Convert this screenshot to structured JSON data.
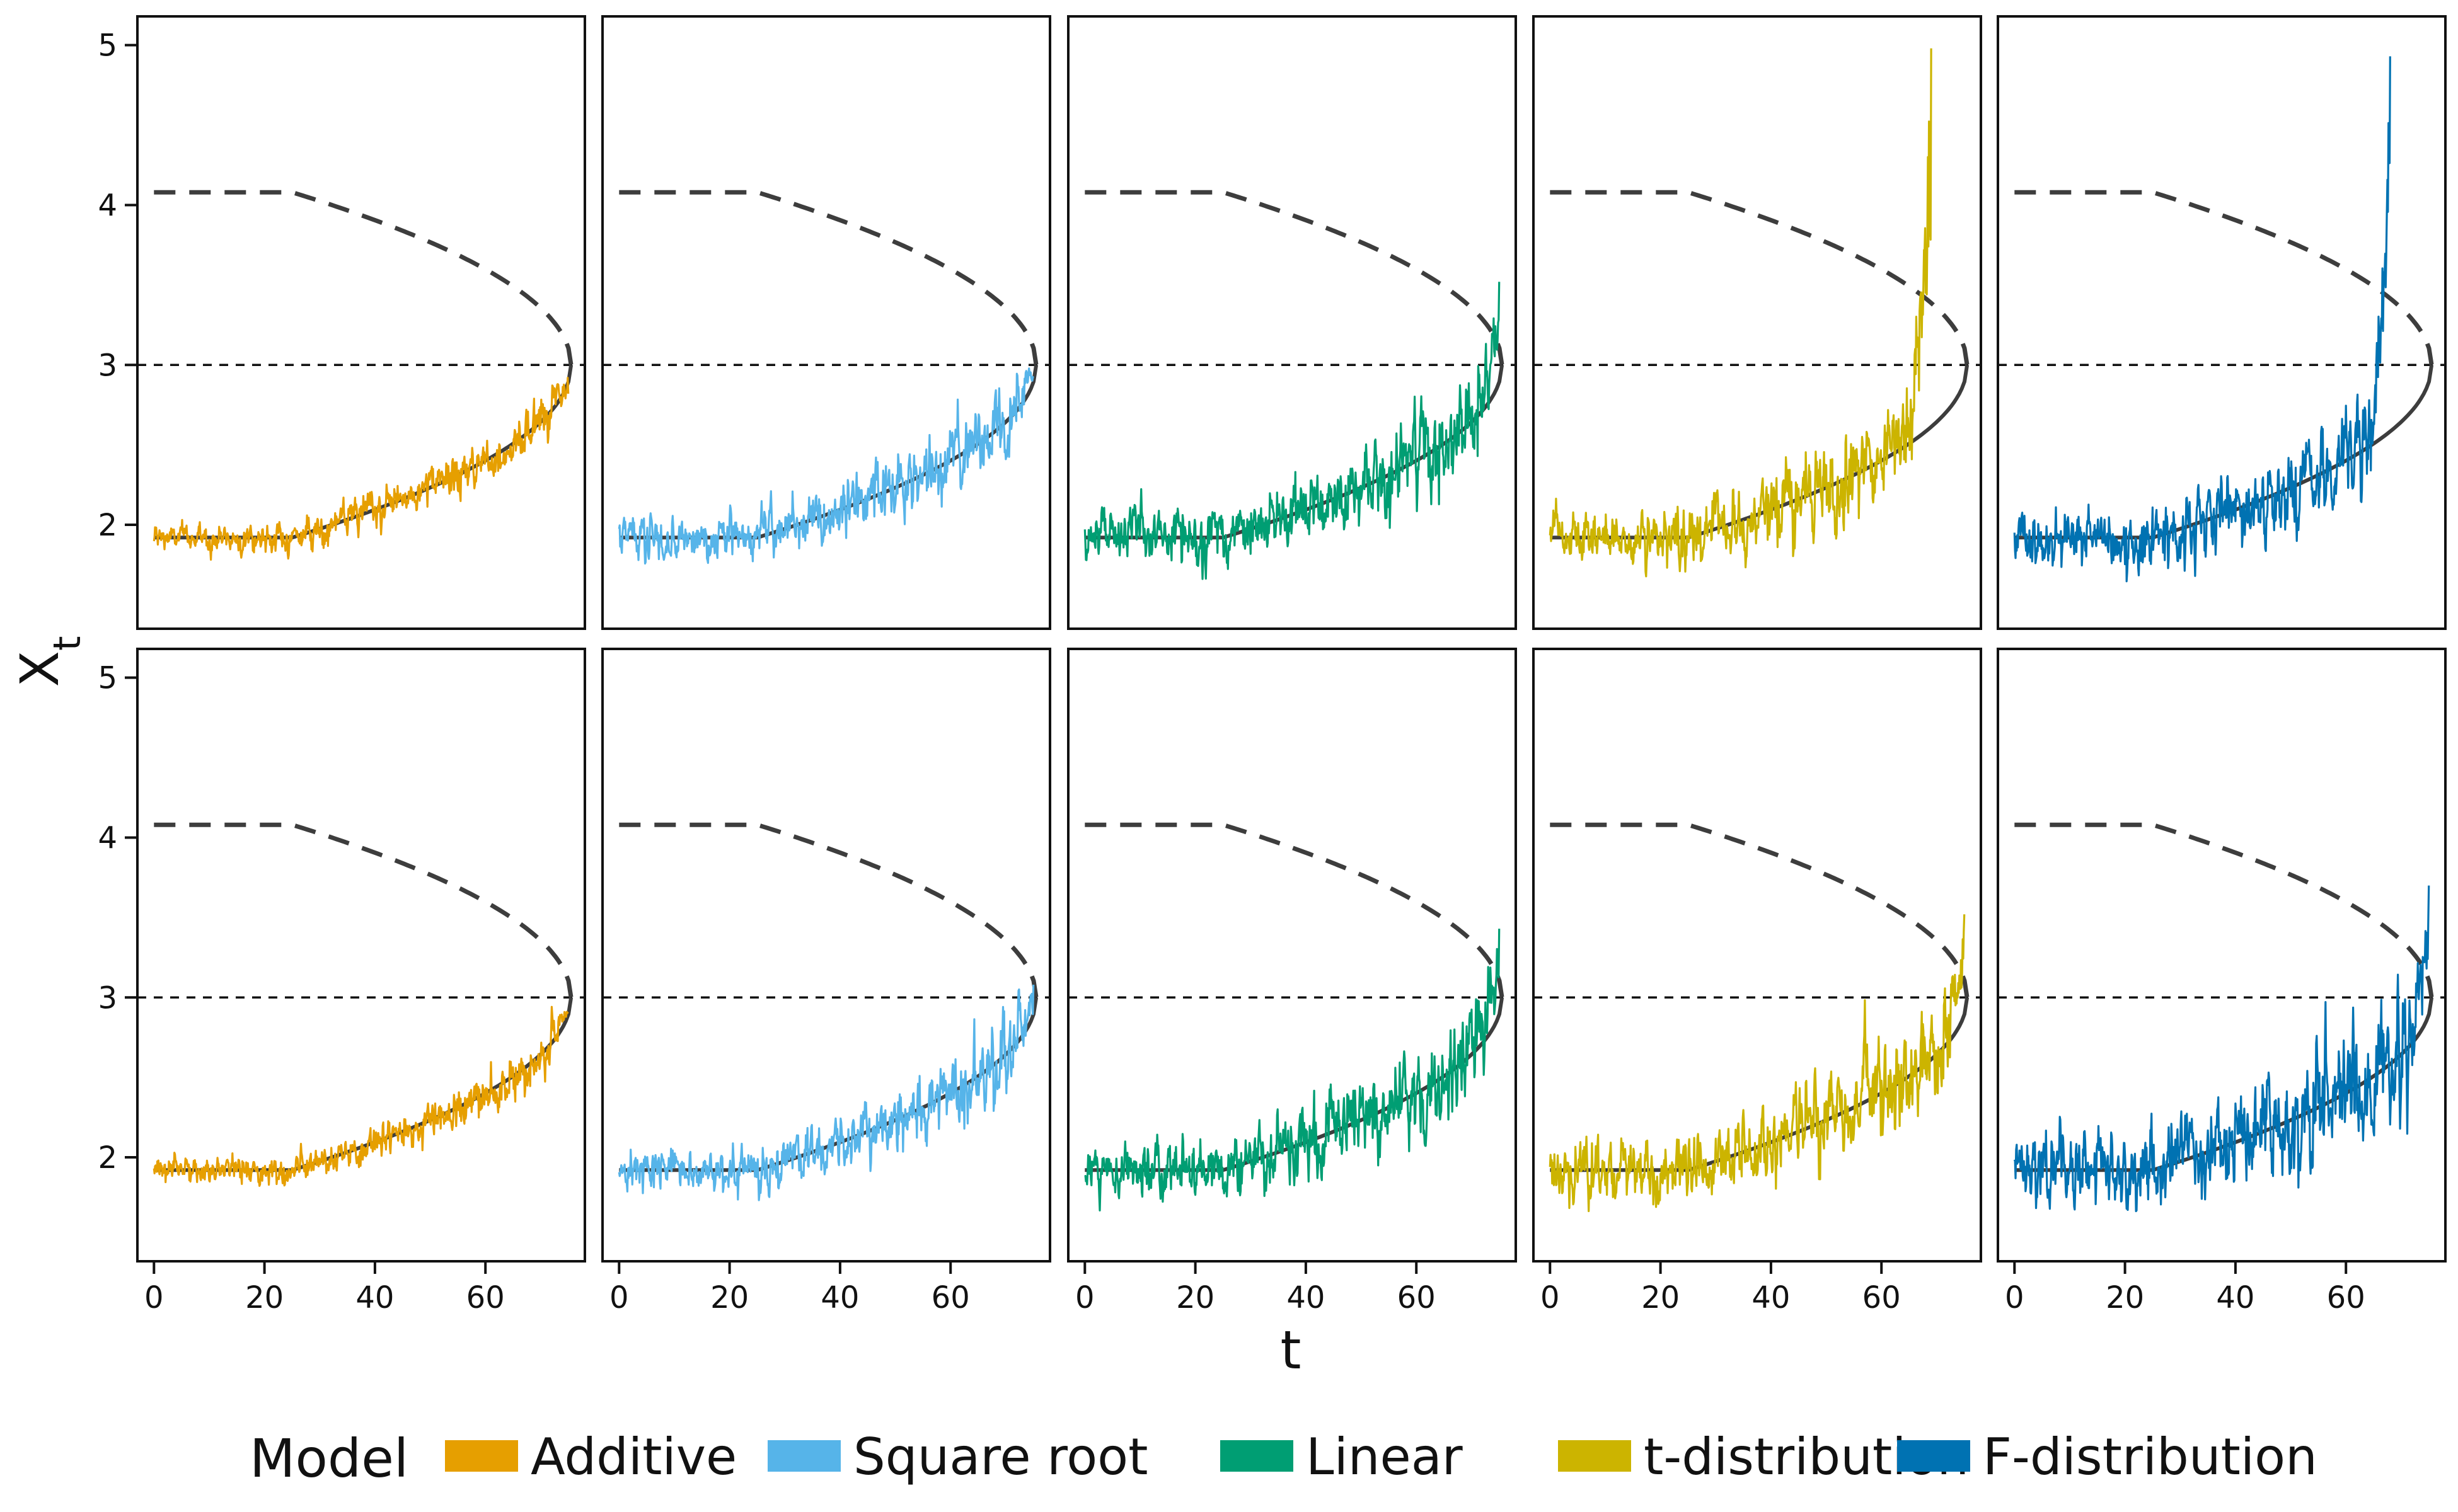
{
  "chart_data": {
    "type": "line",
    "layout": {
      "rows": 2,
      "columns": 5,
      "shared_axes": true
    },
    "xlabel": "t",
    "ylabel": "X",
    "ylabel_subscript": "t",
    "xlim": [
      -3,
      78
    ],
    "ylim": [
      1.35,
      5.18
    ],
    "xticks": [
      0,
      20,
      40,
      60
    ],
    "yticks": [
      2,
      3,
      4,
      5
    ],
    "reference_line": {
      "y": 3.0,
      "style": "dotted"
    },
    "equilibrium_curve": {
      "lower_branch": "solid",
      "upper_branch": "dashed",
      "lower_start": 1.92,
      "upper_start": 4.08,
      "flat_until_t": 25,
      "fold": {
        "t": 75.5,
        "x": 3.0
      }
    },
    "legend": {
      "title": "Model",
      "position": "bottom",
      "entries": [
        {
          "label": "Additive",
          "color": "#E69F00"
        },
        {
          "label": "Square root",
          "color": "#56B4E9"
        },
        {
          "label": "Linear",
          "color": "#009E73"
        },
        {
          "label": "t-distribution",
          "color": "#CCB400"
        },
        {
          "label": "F-distribution",
          "color": "#0072B2"
        }
      ]
    },
    "series": [
      {
        "name": "Additive",
        "row": 1,
        "column": 1,
        "t_end": 75,
        "noise": 0.045,
        "tail_max": 2.82
      },
      {
        "name": "Square root",
        "row": 1,
        "column": 2,
        "t_end": 75,
        "noise": 0.07,
        "tail_max": 2.92
      },
      {
        "name": "Linear",
        "row": 1,
        "column": 3,
        "t_end": 75,
        "noise": 0.09,
        "tail_max": 3.52
      },
      {
        "name": "t-distribution",
        "row": 1,
        "column": 4,
        "t_end": 69,
        "noise": 0.09,
        "tail_max": 4.98
      },
      {
        "name": "F-distribution",
        "row": 1,
        "column": 5,
        "t_end": 68,
        "noise": 0.1,
        "tail_max": 4.93
      },
      {
        "name": "Additive",
        "row": 2,
        "column": 1,
        "t_end": 75,
        "noise": 0.045,
        "tail_max": 2.9
      },
      {
        "name": "Square root",
        "row": 2,
        "column": 2,
        "t_end": 75,
        "noise": 0.07,
        "tail_max": 3.08
      },
      {
        "name": "Linear",
        "row": 2,
        "column": 3,
        "t_end": 75,
        "noise": 0.09,
        "tail_max": 3.43
      },
      {
        "name": "t-distribution",
        "row": 2,
        "column": 4,
        "t_end": 75,
        "noise": 0.1,
        "tail_max": 3.52
      },
      {
        "name": "F-distribution",
        "row": 2,
        "column": 5,
        "t_end": 75,
        "noise": 0.12,
        "tail_max": 3.7
      }
    ]
  }
}
